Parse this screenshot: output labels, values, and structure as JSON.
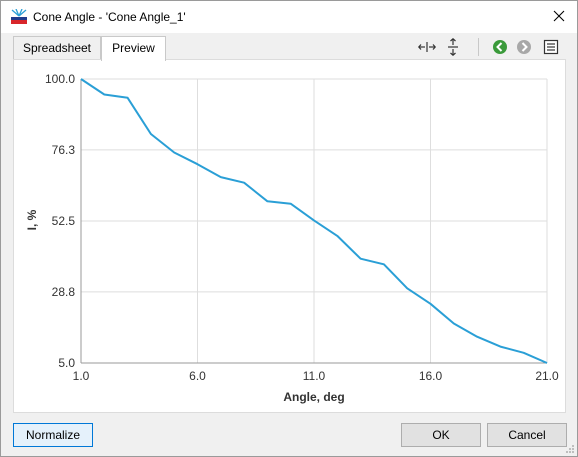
{
  "window": {
    "title": "Cone Angle - 'Cone Angle_1'",
    "close_icon": "close-icon",
    "app_icon": "cone-angle-app-icon"
  },
  "tabs": [
    {
      "label": "Spreadsheet",
      "active": false
    },
    {
      "label": "Preview",
      "active": true
    }
  ],
  "toolbar": {
    "fit_horizontal_icon": "fit-horizontal-icon",
    "fit_vertical_icon": "fit-vertical-icon",
    "back_icon": "back-arrow-icon",
    "forward_icon": "forward-arrow-icon",
    "list_icon": "list-icon"
  },
  "buttons": {
    "normalize": "Normalize",
    "ok": "OK",
    "cancel": "Cancel"
  },
  "colors": {
    "series": "#2a9fd6",
    "grid": "#dedede",
    "back_arrow": "#3a9a3a",
    "forward_arrow": "#a8a8a8"
  },
  "chart_data": {
    "type": "line",
    "xlabel": "Angle, deg",
    "ylabel": "I, %",
    "xlim": [
      1.0,
      21.0
    ],
    "ylim": [
      5.0,
      100.0
    ],
    "xticks": [
      "1.0",
      "6.0",
      "11.0",
      "16.0",
      "21.0"
    ],
    "yticks": [
      "5.0",
      "28.8",
      "52.5",
      "76.3",
      "100.0"
    ],
    "grid": true,
    "x": [
      1,
      2,
      3,
      4,
      5,
      6,
      7,
      8,
      9,
      10,
      11,
      12,
      13,
      14,
      15,
      16,
      17,
      18,
      19,
      20,
      21
    ],
    "y": [
      100.0,
      94.8,
      93.7,
      81.6,
      75.4,
      71.5,
      67.2,
      65.3,
      59.1,
      58.3,
      52.7,
      47.5,
      39.9,
      38.0,
      30.0,
      24.8,
      18.2,
      13.8,
      10.5,
      8.4,
      5.0
    ]
  }
}
